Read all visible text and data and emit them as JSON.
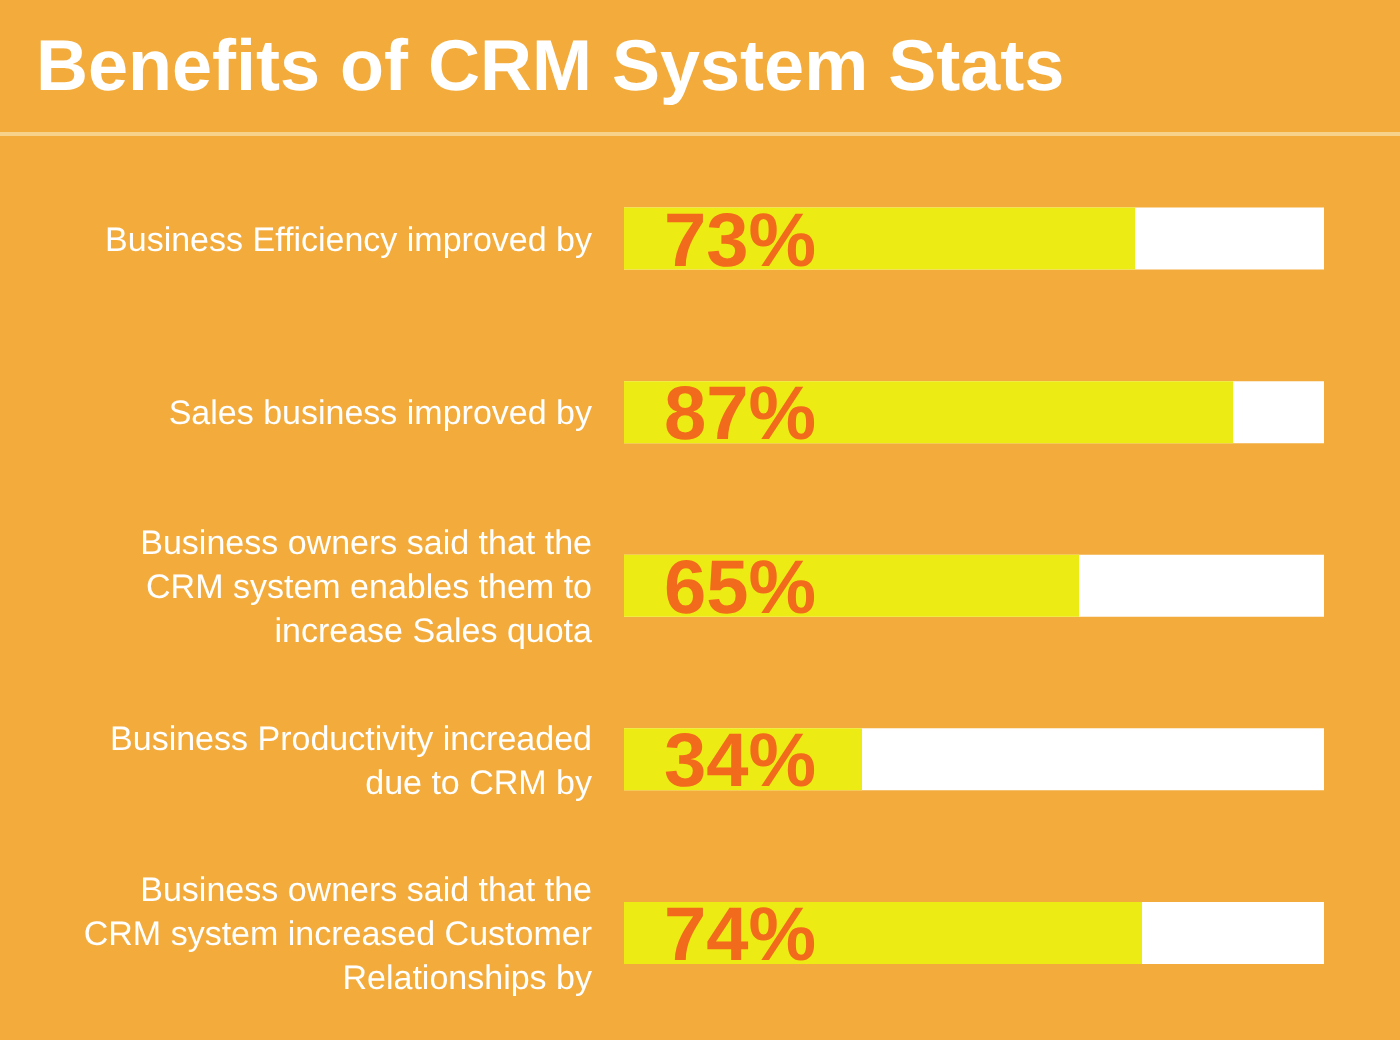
{
  "chart_data": {
    "type": "bar",
    "orientation": "horizontal",
    "title": "Benefits of CRM System Stats",
    "categories": [
      "Business Efficiency improved by",
      "Sales business improved by",
      "Business owners said that the CRM system enables them to increase Sales quota",
      "Business Productivity increaded due to CRM by",
      "Business owners said that the CRM system increased Customer Relationships by"
    ],
    "values": [
      73,
      87,
      65,
      34,
      74
    ],
    "value_labels": [
      "73%",
      "87%",
      "65%",
      "34%",
      "74%"
    ],
    "color": "#ecec14",
    "xlim": [
      0,
      100
    ],
    "tick_labels": "y"
  }
}
